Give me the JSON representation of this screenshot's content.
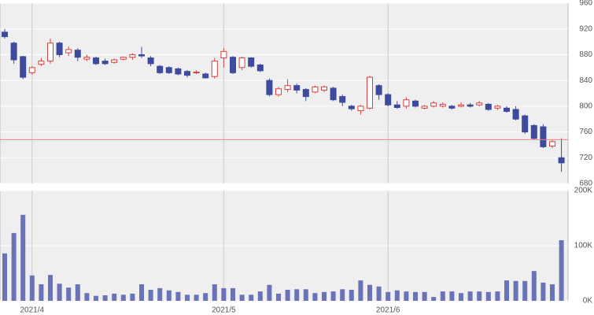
{
  "chart_data": [
    {
      "type": "candlestick",
      "categories": [
        null,
        null,
        null,
        "2021/4",
        null,
        null,
        null,
        null,
        null,
        null,
        null,
        null,
        null,
        null,
        null,
        null,
        null,
        null,
        null,
        null,
        null,
        null,
        null,
        null,
        "2021/5",
        null,
        null,
        null,
        null,
        null,
        null,
        null,
        null,
        null,
        null,
        null,
        null,
        null,
        null,
        null,
        null,
        null,
        "2021/6",
        null,
        null,
        null,
        null,
        null,
        null,
        null,
        null,
        null,
        null,
        null,
        null,
        null,
        null,
        null,
        null,
        null,
        null,
        null
      ],
      "open": [
        915,
        898,
        877,
        852,
        865,
        870,
        898,
        883,
        887,
        873,
        875,
        870,
        868,
        873,
        876,
        880,
        875,
        862,
        860,
        858,
        854,
        852,
        850,
        846,
        875,
        876,
        860,
        875,
        864,
        840,
        818,
        826,
        832,
        826,
        822,
        825,
        828,
        815,
        800,
        793,
        797,
        832,
        818,
        802,
        800,
        808,
        797,
        800,
        800,
        800,
        800,
        802,
        802,
        803,
        797,
        797,
        795,
        785,
        770,
        768,
        738,
        720
      ],
      "high": [
        920,
        900,
        878,
        862,
        875,
        905,
        900,
        893,
        890,
        880,
        877,
        874,
        874,
        877,
        882,
        892,
        878,
        864,
        862,
        860,
        856,
        856,
        852,
        875,
        890,
        878,
        877,
        876,
        866,
        843,
        830,
        842,
        835,
        828,
        832,
        832,
        830,
        818,
        802,
        802,
        847,
        834,
        820,
        808,
        814,
        810,
        802,
        808,
        806,
        802,
        806,
        805,
        808,
        805,
        802,
        800,
        800,
        787,
        772,
        772,
        748,
        750
      ],
      "low": [
        905,
        866,
        842,
        849,
        862,
        866,
        876,
        878,
        870,
        870,
        864,
        864,
        866,
        871,
        872,
        875,
        862,
        850,
        850,
        848,
        845,
        850,
        843,
        843,
        860,
        850,
        856,
        860,
        853,
        815,
        815,
        822,
        820,
        808,
        820,
        822,
        808,
        800,
        793,
        787,
        795,
        810,
        800,
        796,
        796,
        798,
        795,
        798,
        798,
        795,
        798,
        798,
        800,
        793,
        794,
        790,
        778,
        757,
        748,
        735,
        735,
        698
      ],
      "close": [
        908,
        872,
        845,
        860,
        870,
        898,
        880,
        888,
        876,
        876,
        866,
        866,
        872,
        876,
        880,
        878,
        866,
        852,
        852,
        850,
        848,
        853,
        844,
        870,
        885,
        852,
        875,
        862,
        855,
        818,
        827,
        832,
        825,
        815,
        830,
        830,
        810,
        806,
        796,
        800,
        845,
        818,
        802,
        798,
        810,
        800,
        800,
        805,
        803,
        797,
        802,
        800,
        805,
        795,
        800,
        792,
        780,
        760,
        750,
        737,
        745,
        712
      ],
      "up_color": "#d9413f",
      "down_color": "#3d4a9e",
      "reference_line": {
        "value": 748,
        "color": "#f08080"
      },
      "ylim": [
        680,
        960
      ],
      "yticks": [
        680,
        720,
        760,
        800,
        840,
        880,
        920,
        960
      ],
      "grid": true
    },
    {
      "type": "bar",
      "color": "#6a72b8",
      "values": [
        86000,
        123000,
        156000,
        46000,
        30000,
        47000,
        31000,
        24000,
        30000,
        14000,
        9000,
        10000,
        13000,
        11000,
        13000,
        30000,
        20000,
        23000,
        19000,
        16000,
        11000,
        11000,
        14000,
        30000,
        23000,
        23000,
        11000,
        11000,
        17000,
        29000,
        13000,
        20000,
        21000,
        21000,
        14000,
        16000,
        17000,
        21000,
        20000,
        37000,
        29000,
        26000,
        16000,
        19000,
        17000,
        16000,
        16000,
        7000,
        17000,
        17000,
        14000,
        17000,
        17000,
        16000,
        17000,
        37000,
        36000,
        36000,
        54000,
        33000,
        30000,
        110000
      ],
      "ylim": [
        0,
        200000
      ],
      "yticks": [
        {
          "value": 0,
          "label": "0K"
        },
        {
          "value": 100000,
          "label": "100K"
        },
        {
          "value": 200000,
          "label": "200K"
        }
      ],
      "grid": true
    }
  ]
}
